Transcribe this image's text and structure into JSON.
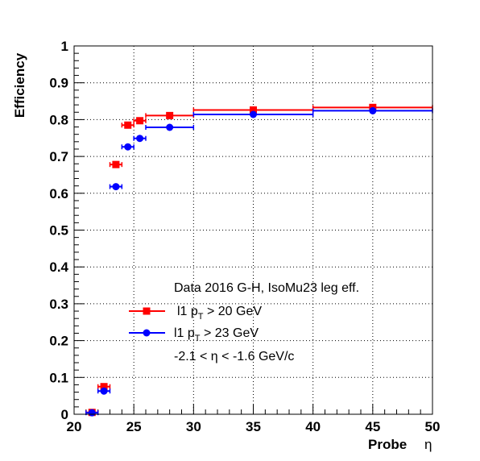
{
  "chart_data": {
    "type": "scatter",
    "title": "",
    "xlabel": "Probe",
    "xlabel_symbol": "η",
    "ylabel": "Efficiency",
    "xlim": [
      20,
      50
    ],
    "ylim": [
      0,
      1
    ],
    "grid": true,
    "xticks": [
      "20",
      "25",
      "30",
      "35",
      "40",
      "45",
      "50"
    ],
    "yticks": [
      "0",
      "0.1",
      "0.2",
      "0.3",
      "0.4",
      "0.5",
      "0.6",
      "0.7",
      "0.8",
      "0.9",
      "1"
    ],
    "series": [
      {
        "name": "l1 pT > 20 GeV",
        "color": "#ff0000",
        "marker": "square",
        "points": [
          {
            "x": 21.5,
            "xerr": 0.5,
            "y": 0.005
          },
          {
            "x": 22.5,
            "xerr": 0.5,
            "y": 0.075
          },
          {
            "x": 23.5,
            "xerr": 0.5,
            "y": 0.678
          },
          {
            "x": 24.5,
            "xerr": 0.5,
            "y": 0.785
          },
          {
            "x": 25.5,
            "xerr": 0.5,
            "y": 0.797
          },
          {
            "x": 28.0,
            "xerr": 2.0,
            "y": 0.811
          },
          {
            "x": 35.0,
            "xerr": 5.0,
            "y": 0.826
          },
          {
            "x": 45.0,
            "xerr": 5.0,
            "y": 0.833
          }
        ]
      },
      {
        "name": "l1 pT > 23 GeV",
        "color": "#0000ff",
        "marker": "circle",
        "points": [
          {
            "x": 21.5,
            "xerr": 0.5,
            "y": 0.004
          },
          {
            "x": 22.5,
            "xerr": 0.5,
            "y": 0.063
          },
          {
            "x": 23.5,
            "xerr": 0.5,
            "y": 0.618
          },
          {
            "x": 24.5,
            "xerr": 0.5,
            "y": 0.726
          },
          {
            "x": 25.5,
            "xerr": 0.5,
            "y": 0.749
          },
          {
            "x": 28.0,
            "xerr": 2.0,
            "y": 0.779
          },
          {
            "x": 35.0,
            "xerr": 5.0,
            "y": 0.814
          },
          {
            "x": 45.0,
            "xerr": 5.0,
            "y": 0.824
          }
        ]
      }
    ],
    "legend": {
      "header": "Data 2016 G-H, IsoMu23 leg eff.",
      "entries": [
        {
          "prefix": "l1 p",
          "sub": "T",
          "suffix": " > 20 GeV"
        },
        {
          "prefix": "l1 p",
          "sub": "T",
          "suffix": " > 23 GeV"
        }
      ],
      "footer": "-2.1 < η < -1.6 GeV/c"
    }
  }
}
